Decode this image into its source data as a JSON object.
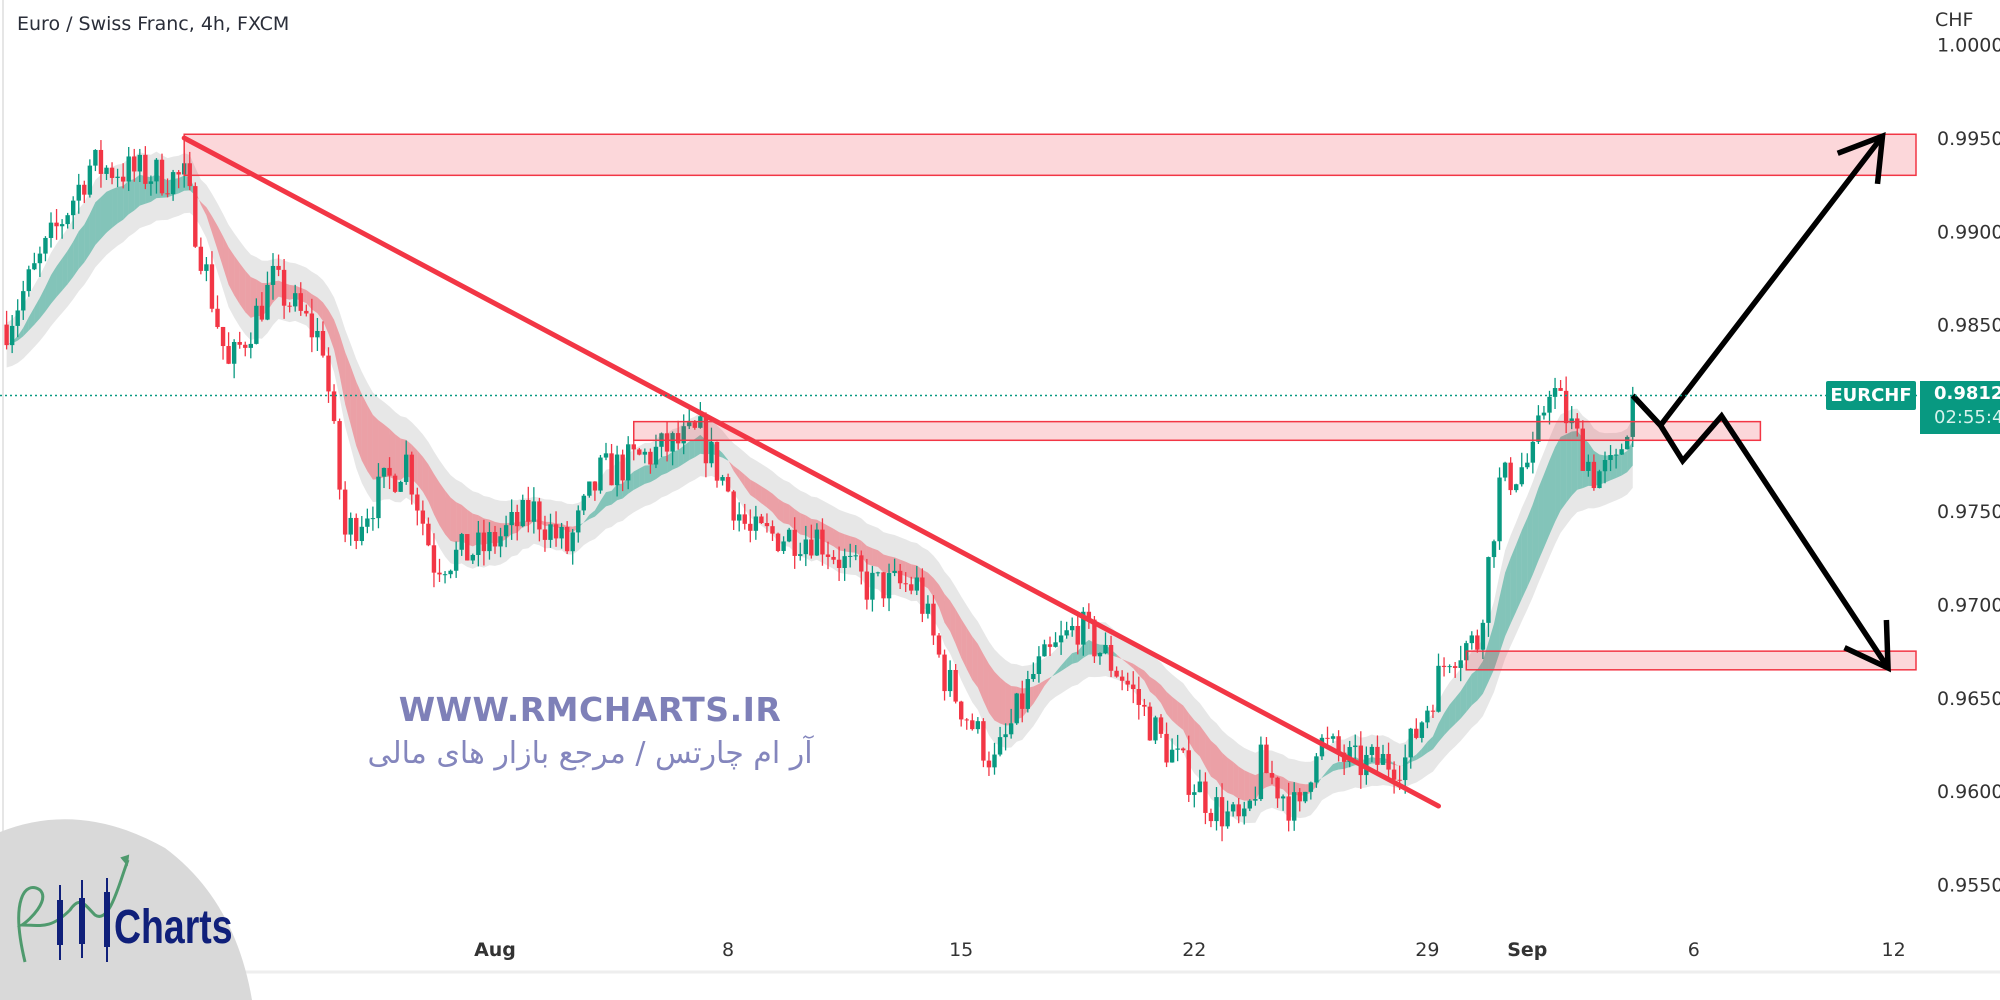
{
  "header": {
    "title": "Euro / Swiss Franc, 4h, FXCM"
  },
  "price_axis": {
    "currency": "CHF"
  },
  "last_price": {
    "symbol": "EURCHF",
    "price": "0.98120",
    "countdown": "02:55:4",
    "color": "#089981"
  },
  "watermark": {
    "url": "WWW.RMCHARTS.IR",
    "tagline": "آر ام چارتس / مرجع بازار های مالی",
    "logo_text": "Charts"
  },
  "chart_data": {
    "type": "candlestick",
    "title": "Euro / Swiss Franc, 4h, FXCM",
    "ylabel": "CHF",
    "ylim": [
      0.9525,
      1.0
    ],
    "yticks": [
      "1.00000",
      "0.99500",
      "0.99000",
      "0.98500",
      "0.97500",
      "0.97000",
      "0.96500",
      "0.96000",
      "0.95500"
    ],
    "xticks": [
      {
        "label": "Aug",
        "date": "Aug 1",
        "bold": true
      },
      {
        "label": "8",
        "date": "Aug 8"
      },
      {
        "label": "15",
        "date": "Aug 15"
      },
      {
        "label": "22",
        "date": "Aug 22"
      },
      {
        "label": "29",
        "date": "Aug 29"
      },
      {
        "label": "Sep",
        "date": "Sep 1",
        "bold": true
      },
      {
        "label": "6",
        "date": "Sep 6"
      },
      {
        "label": "12",
        "date": "Sep 12"
      }
    ],
    "grid": false,
    "interval": "4h",
    "up_color": "#089981",
    "down_color": "#f23645",
    "price_path": [
      [
        "Jul 17 08:00",
        0.985
      ],
      [
        "Jul 19 20:00",
        0.9935
      ],
      [
        "Jul 22 16:00",
        0.9928
      ],
      [
        "Jul 24 00:00",
        0.9826
      ],
      [
        "Jul 25 08:00",
        0.9873
      ],
      [
        "Jul 26 20:00",
        0.984
      ],
      [
        "Jul 27 12:00",
        0.9737
      ],
      [
        "Jul 29 08:00",
        0.9778
      ],
      [
        "Jul 30 04:00",
        0.9723
      ],
      [
        "Jul 31 16:00",
        0.973
      ],
      [
        "Aug 2 04:00",
        0.975
      ],
      [
        "Aug 3 04:00",
        0.973
      ],
      [
        "Aug 4 04:00",
        0.977
      ],
      [
        "Aug 7 04:00",
        0.9791
      ],
      [
        "Aug 8 16:00",
        0.9737
      ],
      [
        "Aug 10 16:00",
        0.9737
      ],
      [
        "Aug 12 04:00",
        0.971
      ],
      [
        "Aug 13 16:00",
        0.971
      ],
      [
        "Aug 14 12:00",
        0.9662
      ],
      [
        "Aug 16 00:00",
        0.9614
      ],
      [
        "Aug 17 04:00",
        0.9662
      ],
      [
        "Aug 18 12:00",
        0.9689
      ],
      [
        "Aug 19 20:00",
        0.9662
      ],
      [
        "Aug 21 00:00",
        0.9627
      ],
      [
        "Aug 22 12:00",
        0.9593
      ],
      [
        "Aug 23 12:00",
        0.958
      ],
      [
        "Aug 24 00:00",
        0.9614
      ],
      [
        "Aug 25 04:00",
        0.9587
      ],
      [
        "Aug 25 16:00",
        0.9627
      ],
      [
        "Aug 26 20:00",
        0.9614
      ],
      [
        "Aug 28 08:00",
        0.9617
      ],
      [
        "Aug 29 16:00",
        0.9675
      ],
      [
        "Aug 30 12:00",
        0.968
      ],
      [
        "Aug 31 04:00",
        0.9764
      ],
      [
        "Sep 1 04:00",
        0.9778
      ],
      [
        "Sep 1 16:00",
        0.9819
      ],
      [
        "Sep 3 00:00",
        0.977
      ],
      [
        "Sep 3 16:00",
        0.9773
      ],
      [
        "Sep 4 04:00",
        0.9812
      ]
    ],
    "zones": [
      {
        "from": "Jul 22 16:00",
        "to": "Sep 13",
        "top": 0.9952,
        "bottom": 0.993,
        "color": "#f23645"
      },
      {
        "from": "Aug 5 04:00",
        "to": "Sep 8",
        "top": 0.9798,
        "bottom": 0.9788,
        "color": "#f23645"
      },
      {
        "from": "Aug 30 04:00",
        "to": "Sep 13",
        "top": 0.9675,
        "bottom": 0.9665,
        "color": "#f23645"
      }
    ],
    "trendline": {
      "from": [
        "Jul 22 16:00",
        0.995
      ],
      "to": [
        "Aug 29 08:00",
        0.9592
      ],
      "color": "#f23645"
    },
    "projection_arrows": [
      {
        "points": [
          [
            "Sep 4 04:00",
            0.9812
          ],
          [
            "Sep 5 00:00",
            0.9796
          ],
          [
            "Sep 11 16:00",
            0.9951
          ]
        ]
      },
      {
        "points": [
          [
            "Sep 4 04:00",
            0.9812
          ],
          [
            "Sep 5 00:00",
            0.9796
          ],
          [
            "Sep 5 16:00",
            0.9777
          ],
          [
            "Sep 6 20:00",
            0.9801
          ],
          [
            "Sep 11 20:00",
            0.9666
          ]
        ]
      }
    ]
  }
}
